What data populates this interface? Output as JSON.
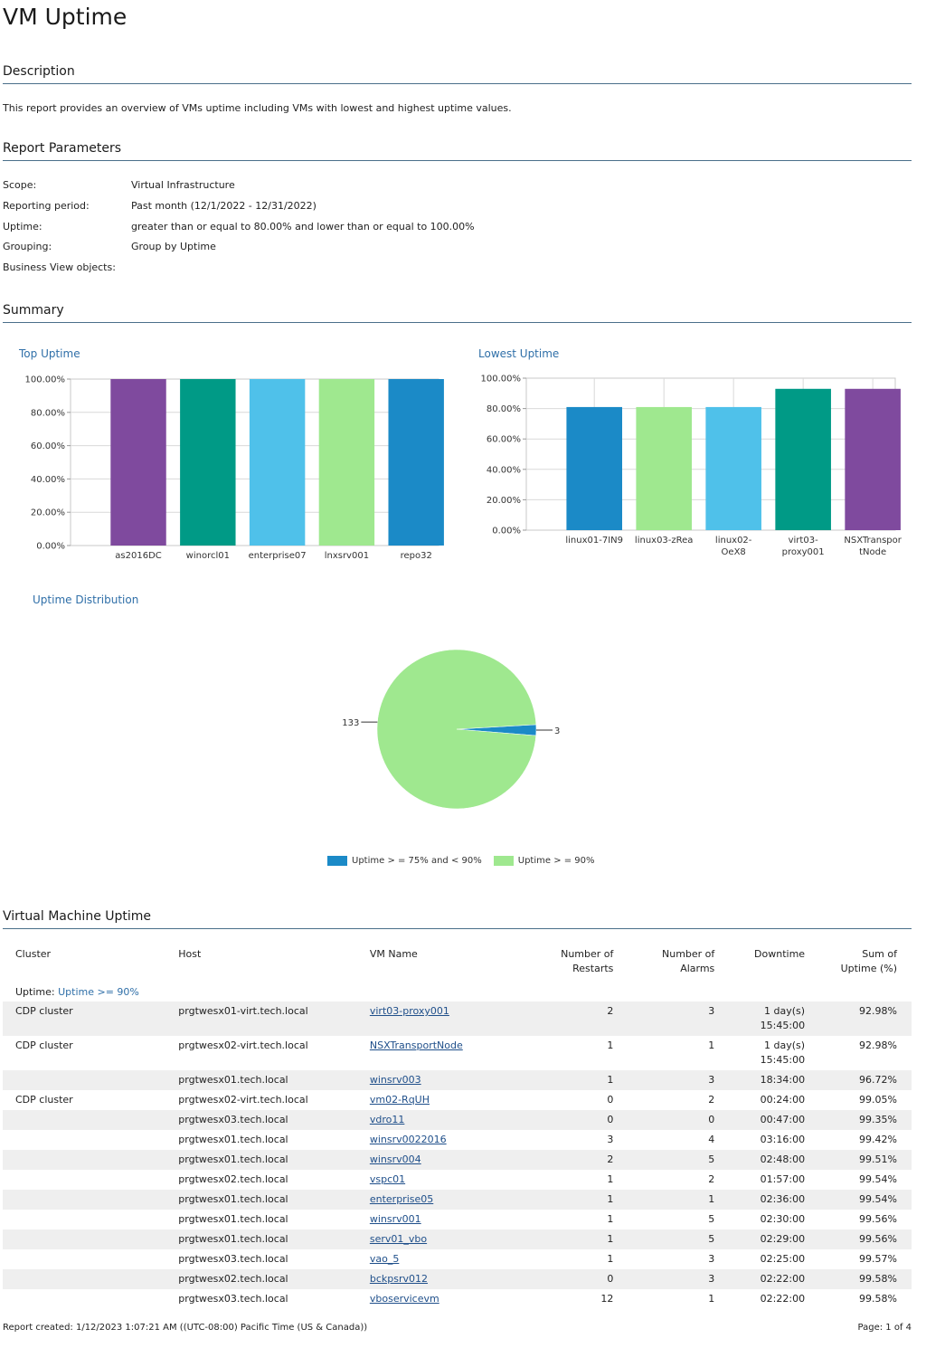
{
  "report": {
    "title": "VM Uptime"
  },
  "sections": {
    "description": "Description",
    "parameters": "Report Parameters",
    "summary": "Summary",
    "vm_uptime": "Virtual Machine Uptime"
  },
  "description_text": "This report provides an overview of VMs uptime including VMs with lowest and highest uptime values.",
  "parameters": [
    {
      "label": "Scope:",
      "value": "Virtual Infrastructure"
    },
    {
      "label": "Reporting period:",
      "value": "Past month (12/1/2022 - 12/31/2022)"
    },
    {
      "label": "Uptime:",
      "value": "greater than or equal to 80.00% and lower than or equal to 100.00%"
    },
    {
      "label": "Grouping:",
      "value": "Group by Uptime"
    },
    {
      "label": "Business View objects:",
      "value": ""
    }
  ],
  "chart_data": [
    {
      "type": "bar",
      "title": "Top Uptime",
      "categories": [
        "as2016DC",
        "winorcl01",
        "enterprise07",
        "lnxsrv001",
        "repo32"
      ],
      "values": [
        100,
        100,
        100,
        100,
        100
      ],
      "colors": [
        "#7f4a9e",
        "#009a86",
        "#4fc1ea",
        "#9fe88f",
        "#1b8ac7"
      ],
      "ylim": [
        0,
        100
      ],
      "yticks": [
        "0.00%",
        "20.00%",
        "40.00%",
        "60.00%",
        "80.00%",
        "100.00%"
      ],
      "grid": true
    },
    {
      "type": "bar",
      "title": "Lowest Uptime",
      "categories": [
        "linux01-7IN9",
        "linux03-zRea",
        "linux02-OeX8",
        "virt03-proxy001",
        "NSXTransportNode"
      ],
      "category_lines": [
        [
          "linux01-7IN9"
        ],
        [
          "linux03-zRea"
        ],
        [
          "linux02-",
          "OeX8"
        ],
        [
          "virt03-",
          "proxy001"
        ],
        [
          "NSXTranspor",
          "tNode"
        ]
      ],
      "values": [
        81,
        81,
        81,
        92.98,
        92.98
      ],
      "colors": [
        "#1b8ac7",
        "#9fe88f",
        "#4fc1ea",
        "#009a86",
        "#7f4a9e"
      ],
      "ylim": [
        0,
        100
      ],
      "yticks": [
        "0.00%",
        "20.00%",
        "40.00%",
        "60.00%",
        "80.00%",
        "100.00%"
      ],
      "grid": true
    },
    {
      "type": "pie",
      "title": "Uptime Distribution",
      "categories": [
        "Uptime > = 75% and < 90%",
        "Uptime > = 90%"
      ],
      "values": [
        3,
        133
      ],
      "colors": [
        "#1b8ac7",
        "#9fe88f"
      ],
      "legend": "bottom"
    }
  ],
  "table": {
    "headers": {
      "cluster": "Cluster",
      "host": "Host",
      "vm_name": "VM Name",
      "restarts_1": "Number of",
      "restarts_2": "Restarts",
      "alarms_1": "Number of",
      "alarms_2": "Alarms",
      "downtime": "Downtime",
      "uptime_1": "Sum of",
      "uptime_2": "Uptime (%)"
    },
    "group_label": "Uptime:",
    "group_value": "Uptime >= 90%",
    "rows": [
      {
        "cluster": "CDP cluster",
        "host": "prgtwesx01-virt.tech.local",
        "vm": "virt03-proxy001",
        "restarts": "2",
        "alarms": "3",
        "downtime_1": "1 day(s)",
        "downtime_2": "15:45:00",
        "uptime": "92.98%"
      },
      {
        "cluster": "CDP cluster",
        "host": "prgtwesx02-virt.tech.local",
        "vm": "NSXTransportNode",
        "restarts": "1",
        "alarms": "1",
        "downtime_1": "1 day(s)",
        "downtime_2": "15:45:00",
        "uptime": "92.98%"
      },
      {
        "cluster": "",
        "host": "prgtwesx01.tech.local",
        "vm": "winsrv003",
        "restarts": "1",
        "alarms": "3",
        "downtime_1": "18:34:00",
        "downtime_2": "",
        "uptime": "96.72%"
      },
      {
        "cluster": "CDP cluster",
        "host": "prgtwesx02-virt.tech.local",
        "vm": "vm02-RqUH",
        "restarts": "0",
        "alarms": "2",
        "downtime_1": "00:24:00",
        "downtime_2": "",
        "uptime": "99.05%"
      },
      {
        "cluster": "",
        "host": "prgtwesx03.tech.local",
        "vm": "vdro11",
        "restarts": "0",
        "alarms": "0",
        "downtime_1": "00:47:00",
        "downtime_2": "",
        "uptime": "99.35%"
      },
      {
        "cluster": "",
        "host": "prgtwesx01.tech.local",
        "vm": "winsrv0022016",
        "restarts": "3",
        "alarms": "4",
        "downtime_1": "03:16:00",
        "downtime_2": "",
        "uptime": "99.42%"
      },
      {
        "cluster": "",
        "host": "prgtwesx01.tech.local",
        "vm": "winsrv004",
        "restarts": "2",
        "alarms": "5",
        "downtime_1": "02:48:00",
        "downtime_2": "",
        "uptime": "99.51%"
      },
      {
        "cluster": "",
        "host": "prgtwesx02.tech.local",
        "vm": "vspc01",
        "restarts": "1",
        "alarms": "2",
        "downtime_1": "01:57:00",
        "downtime_2": "",
        "uptime": "99.54%"
      },
      {
        "cluster": "",
        "host": "prgtwesx01.tech.local",
        "vm": "enterprise05",
        "restarts": "1",
        "alarms": "1",
        "downtime_1": "02:36:00",
        "downtime_2": "",
        "uptime": "99.54%"
      },
      {
        "cluster": "",
        "host": "prgtwesx01.tech.local",
        "vm": "winsrv001",
        "restarts": "1",
        "alarms": "5",
        "downtime_1": "02:30:00",
        "downtime_2": "",
        "uptime": "99.56%"
      },
      {
        "cluster": "",
        "host": "prgtwesx01.tech.local",
        "vm": "serv01_vbo",
        "restarts": "1",
        "alarms": "5",
        "downtime_1": "02:29:00",
        "downtime_2": "",
        "uptime": "99.56%"
      },
      {
        "cluster": "",
        "host": "prgtwesx03.tech.local",
        "vm": "vao_5",
        "restarts": "1",
        "alarms": "3",
        "downtime_1": "02:25:00",
        "downtime_2": "",
        "uptime": "99.57%"
      },
      {
        "cluster": "",
        "host": "prgtwesx02.tech.local",
        "vm": "bckpsrv012",
        "restarts": "0",
        "alarms": "3",
        "downtime_1": "02:22:00",
        "downtime_2": "",
        "uptime": "99.58%"
      },
      {
        "cluster": "",
        "host": "prgtwesx03.tech.local",
        "vm": "vboservicevm",
        "restarts": "12",
        "alarms": "1",
        "downtime_1": "02:22:00",
        "downtime_2": "",
        "uptime": "99.58%"
      }
    ]
  },
  "footer": {
    "created": "Report created: 1/12/2023 1:07:21 AM ((UTC-08:00) Pacific Time (US & Canada))",
    "page": "Page: 1 of 4"
  }
}
